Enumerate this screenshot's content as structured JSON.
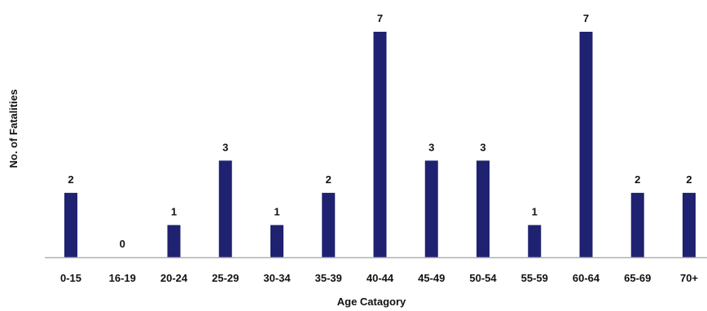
{
  "chart_data": {
    "type": "bar",
    "title": "",
    "xlabel": "Age Catagory",
    "ylabel": "No. of Fatalities",
    "categories": [
      "0-15",
      "16-19",
      "20-24",
      "25-29",
      "30-34",
      "35-39",
      "40-44",
      "45-49",
      "50-54",
      "55-59",
      "60-64",
      "65-69",
      "70+"
    ],
    "values": [
      2,
      0,
      1,
      3,
      1,
      2,
      7,
      3,
      3,
      1,
      7,
      2,
      2
    ],
    "ylim": [
      0,
      7
    ],
    "grid": false,
    "legend": "none",
    "data_labels": true,
    "bar_color": "#1f2270",
    "axis_color": "#b0b0b0"
  }
}
